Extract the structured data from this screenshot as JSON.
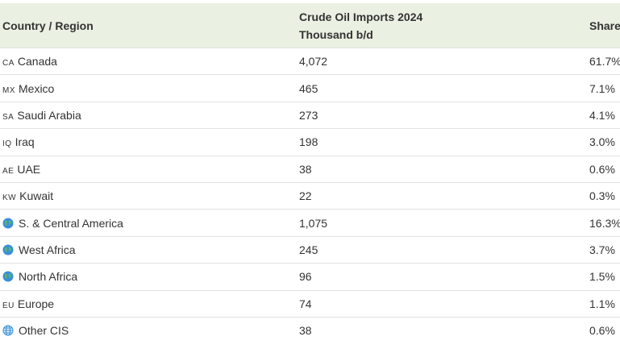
{
  "table": {
    "header": {
      "country": "Country / Region",
      "imports": "Crude Oil Imports 2024",
      "unit": "Thousand b/d",
      "share": "Share"
    },
    "rows": [
      {
        "flag": "CA",
        "name": "Canada",
        "value": "4,072",
        "share": "61.7%"
      },
      {
        "flag": "MX",
        "name": "Mexico",
        "value": "465",
        "share": "7.1%"
      },
      {
        "flag": "SA",
        "name": "Saudi Arabia",
        "value": "273",
        "share": "4.1%"
      },
      {
        "flag": "IQ",
        "name": "Iraq",
        "value": "198",
        "share": "3.0%"
      },
      {
        "flag": "AE",
        "name": "UAE",
        "value": "38",
        "share": "0.6%"
      },
      {
        "flag": "KW",
        "name": "Kuwait",
        "value": "22",
        "share": "0.3%"
      },
      {
        "name": "S. & Central America",
        "value": "1,075",
        "share": "16.3%"
      },
      {
        "name": "West Africa",
        "value": "245",
        "share": "3.7%"
      },
      {
        "name": "North Africa",
        "value": "96",
        "share": "1.5%"
      },
      {
        "flag": "EU",
        "name": "Europe",
        "value": "74",
        "share": "1.1%"
      },
      {
        "name": "Other CIS",
        "value": "38",
        "share": "0.6%"
      }
    ]
  }
}
